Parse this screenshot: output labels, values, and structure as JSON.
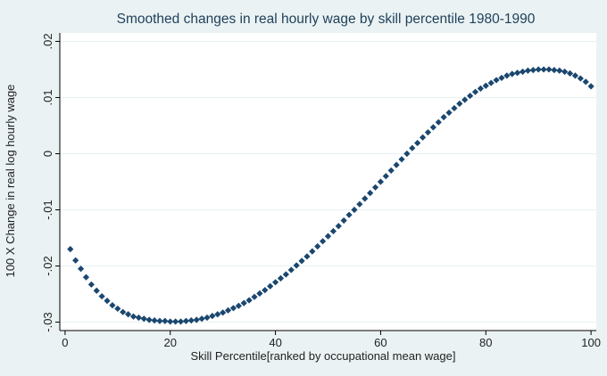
{
  "chart_data": {
    "type": "scatter",
    "title": "Smoothed changes in real hourly wage by skill percentile 1980-1990",
    "xlabel": "Skill Percentile[ranked by occupational mean wage]",
    "ylabel": "100 X Change in real log hourly wage",
    "xlim": [
      -1,
      101
    ],
    "ylim": [
      -0.0315,
      0.0215
    ],
    "xticks": [
      0,
      20,
      40,
      60,
      80,
      100
    ],
    "xtick_labels": [
      "0",
      "20",
      "40",
      "60",
      "80",
      "100"
    ],
    "yticks": [
      -0.03,
      -0.02,
      -0.01,
      0,
      0.01,
      0.02
    ],
    "ytick_labels": [
      "-.03",
      "-.02",
      "-.01",
      "0",
      ".01",
      ".02"
    ],
    "grid": true,
    "legend": "none",
    "colors": {
      "marker": "#1a476f",
      "background": "#eaf2f3",
      "plot_area": "#ffffff",
      "grid": "#eaf2f3",
      "title": "#1e3f5a"
    },
    "series": [
      {
        "x": [
          1,
          2,
          3,
          4,
          5,
          6,
          7,
          8,
          9,
          10,
          11,
          12,
          13,
          14,
          15,
          16,
          17,
          18,
          19,
          20,
          21,
          22,
          23,
          24,
          25,
          26,
          27,
          28,
          29,
          30,
          31,
          32,
          33,
          34,
          35,
          36,
          37,
          38,
          39,
          40,
          41,
          42,
          43,
          44,
          45,
          46,
          47,
          48,
          49,
          50,
          51,
          52,
          53,
          54,
          55,
          56,
          57,
          58,
          59,
          60,
          61,
          62,
          63,
          64,
          65,
          66,
          67,
          68,
          69,
          70,
          71,
          72,
          73,
          74,
          75,
          76,
          77,
          78,
          79,
          80,
          81,
          82,
          83,
          84,
          85,
          86,
          87,
          88,
          89,
          90,
          91,
          92,
          93,
          94,
          95,
          96,
          97,
          98,
          99,
          100
        ],
        "y": [
          -0.017,
          -0.019,
          -0.0205,
          -0.022,
          -0.0233,
          -0.0244,
          -0.0254,
          -0.0262,
          -0.027,
          -0.0276,
          -0.0282,
          -0.0286,
          -0.029,
          -0.0292,
          -0.0294,
          -0.0296,
          -0.0297,
          -0.0298,
          -0.0298,
          -0.0299,
          -0.0299,
          -0.0299,
          -0.0298,
          -0.0297,
          -0.0296,
          -0.0294,
          -0.0292,
          -0.0289,
          -0.0286,
          -0.0283,
          -0.0279,
          -0.0275,
          -0.0271,
          -0.0266,
          -0.0261,
          -0.0255,
          -0.0249,
          -0.0243,
          -0.0236,
          -0.0229,
          -0.0222,
          -0.0215,
          -0.0207,
          -0.0199,
          -0.0191,
          -0.0183,
          -0.0174,
          -0.0165,
          -0.0156,
          -0.0147,
          -0.0138,
          -0.0129,
          -0.0119,
          -0.0109,
          -0.01,
          -0.009,
          -0.008,
          -0.007,
          -0.006,
          -0.005,
          -0.004,
          -0.003,
          -0.002,
          -0.001,
          0.0,
          0.001,
          0.0019,
          0.0029,
          0.0038,
          0.0047,
          0.0056,
          0.0065,
          0.0073,
          0.0081,
          0.0089,
          0.0096,
          0.0103,
          0.011,
          0.0116,
          0.0121,
          0.0126,
          0.0131,
          0.0135,
          0.0139,
          0.0142,
          0.0144,
          0.0146,
          0.0148,
          0.0149,
          0.015,
          0.015,
          0.015,
          0.0149,
          0.0148,
          0.0146,
          0.0143,
          0.0139,
          0.0134,
          0.0128,
          0.012
        ]
      }
    ]
  }
}
